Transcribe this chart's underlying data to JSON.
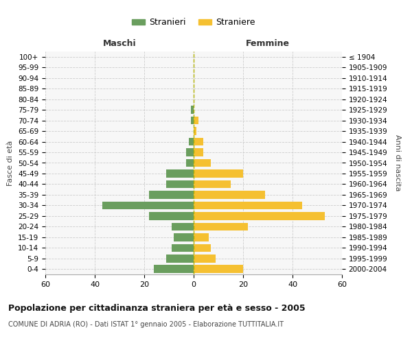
{
  "age_groups": [
    "0-4",
    "5-9",
    "10-14",
    "15-19",
    "20-24",
    "25-29",
    "30-34",
    "35-39",
    "40-44",
    "45-49",
    "50-54",
    "55-59",
    "60-64",
    "65-69",
    "70-74",
    "75-79",
    "80-84",
    "85-89",
    "90-94",
    "95-99",
    "100+"
  ],
  "birth_years": [
    "2000-2004",
    "1995-1999",
    "1990-1994",
    "1985-1989",
    "1980-1984",
    "1975-1979",
    "1970-1974",
    "1965-1969",
    "1960-1964",
    "1955-1959",
    "1950-1954",
    "1945-1949",
    "1940-1944",
    "1935-1939",
    "1930-1934",
    "1925-1929",
    "1920-1924",
    "1915-1919",
    "1910-1914",
    "1905-1909",
    "≤ 1904"
  ],
  "males": [
    16,
    11,
    9,
    8,
    9,
    18,
    37,
    18,
    11,
    11,
    3,
    3,
    2,
    0,
    1,
    1,
    0,
    0,
    0,
    0,
    0
  ],
  "females": [
    20,
    9,
    7,
    6,
    22,
    53,
    44,
    29,
    15,
    20,
    7,
    4,
    4,
    1,
    2,
    0,
    0,
    0,
    0,
    0,
    0
  ],
  "male_color": "#6a9e5e",
  "female_color": "#f5c031",
  "background_color": "#f7f7f7",
  "grid_color": "#cccccc",
  "title": "Popolazione per cittadinanza straniera per età e sesso - 2005",
  "subtitle": "COMUNE DI ADRIA (RO) - Dati ISTAT 1° gennaio 2005 - Elaborazione TUTTITALIA.IT",
  "xlabel_left": "Maschi",
  "xlabel_right": "Femmine",
  "ylabel_left": "Fasce di età",
  "ylabel_right": "Anni di nascita",
  "xlim": 60,
  "legend_male": "Stranieri",
  "legend_female": "Straniere"
}
